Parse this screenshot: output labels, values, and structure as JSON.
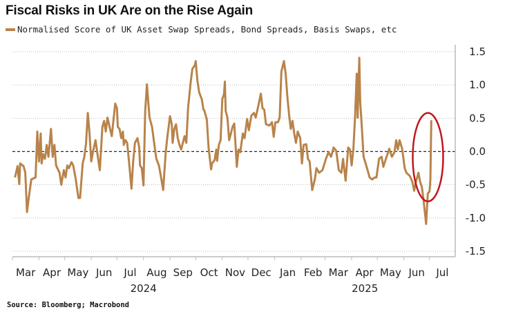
{
  "title": "Fiscal Risks in UK Are on the Rise Again",
  "source": "Source: Bloomberg; Macrobond",
  "colors": {
    "series": "#b8834a",
    "annotation": "#c0161c",
    "grid": "#bbbbbb",
    "zero_line": "#222222"
  },
  "chart_data": {
    "type": "line",
    "title": "Fiscal Risks in UK Are on the Rise Again",
    "xlabel": "",
    "ylabel": "",
    "ylim": [
      -1.5,
      1.5
    ],
    "xlim": [
      "2024-03-01",
      "2025-07-31"
    ],
    "y_axis_side": "right",
    "grid": true,
    "zero_line": "dashed",
    "legend_placement": "top-left",
    "yticks": [
      "1.5",
      "1.0",
      "0.5",
      "0.0",
      "-0.5",
      "-1.0",
      "-1.5"
    ],
    "ytick_values": [
      1.5,
      1.0,
      0.5,
      0.0,
      -0.5,
      -1.0,
      -1.5
    ],
    "months": [
      {
        "label": "Mar",
        "month": "2024-03"
      },
      {
        "label": "Apr",
        "month": "2024-04"
      },
      {
        "label": "May",
        "month": "2024-05"
      },
      {
        "label": "Jun",
        "month": "2024-06"
      },
      {
        "label": "Jul",
        "month": "2024-07"
      },
      {
        "label": "Aug",
        "month": "2024-08"
      },
      {
        "label": "Sep",
        "month": "2024-09"
      },
      {
        "label": "Oct",
        "month": "2024-10"
      },
      {
        "label": "Nov",
        "month": "2024-11"
      },
      {
        "label": "Dec",
        "month": "2024-12"
      },
      {
        "label": "Jan",
        "month": "2025-01"
      },
      {
        "label": "Feb",
        "month": "2025-02"
      },
      {
        "label": "Mar",
        "month": "2025-03"
      },
      {
        "label": "Apr",
        "month": "2025-04"
      },
      {
        "label": "May",
        "month": "2025-05"
      },
      {
        "label": "Jun",
        "month": "2025-06"
      },
      {
        "label": "Jul",
        "month": "2025-07"
      }
    ],
    "years": [
      {
        "label": "2024",
        "from": "2024-03-01",
        "to": "2025-01-01"
      },
      {
        "label": "2025",
        "from": "2025-01-01",
        "to": "2025-07-31"
      }
    ],
    "annotation": {
      "type": "ellipse",
      "around": [
        "2025-06-20",
        "2025-07-05"
      ],
      "yrange": [
        -0.75,
        0.58
      ]
    },
    "series": [
      {
        "name": "Normalised Score of UK Asset Swap Spreads, Bond Spreads, Basis Swaps, etc",
        "points": [
          [
            "2024-03-04",
            -0.39
          ],
          [
            "2024-03-07",
            -0.22
          ],
          [
            "2024-03-09",
            -0.49
          ],
          [
            "2024-03-10",
            -0.18
          ],
          [
            "2024-03-14",
            -0.22
          ],
          [
            "2024-03-16",
            -0.32
          ],
          [
            "2024-03-18",
            -0.91
          ],
          [
            "2024-03-20",
            -0.7
          ],
          [
            "2024-03-23",
            -0.42
          ],
          [
            "2024-03-28",
            -0.39
          ],
          [
            "2024-03-30",
            0.3
          ],
          [
            "2024-04-01",
            -0.15
          ],
          [
            "2024-04-03",
            0.27
          ],
          [
            "2024-04-04",
            -0.18
          ],
          [
            "2024-04-06",
            -0.04
          ],
          [
            "2024-04-08",
            -0.11
          ],
          [
            "2024-04-10",
            0.1
          ],
          [
            "2024-04-12",
            -0.08
          ],
          [
            "2024-04-15",
            0.34
          ],
          [
            "2024-04-17",
            -0.08
          ],
          [
            "2024-04-19",
            0.1
          ],
          [
            "2024-04-21",
            -0.21
          ],
          [
            "2024-04-25",
            -0.32
          ],
          [
            "2024-04-27",
            -0.5
          ],
          [
            "2024-04-30",
            -0.28
          ],
          [
            "2024-05-02",
            -0.39
          ],
          [
            "2024-05-04",
            -0.21
          ],
          [
            "2024-05-06",
            -0.25
          ],
          [
            "2024-05-09",
            -0.16
          ],
          [
            "2024-05-11",
            -0.21
          ],
          [
            "2024-05-14",
            -0.42
          ],
          [
            "2024-05-17",
            -0.7
          ],
          [
            "2024-05-19",
            -0.7
          ],
          [
            "2024-05-22",
            -0.18
          ],
          [
            "2024-05-24",
            -0.08
          ],
          [
            "2024-05-26",
            0.13
          ],
          [
            "2024-05-28",
            0.58
          ],
          [
            "2024-05-30",
            0.27
          ],
          [
            "2024-06-01",
            -0.15
          ],
          [
            "2024-06-03",
            -0.01
          ],
          [
            "2024-06-06",
            0.17
          ],
          [
            "2024-06-08",
            -0.01
          ],
          [
            "2024-06-11",
            -0.28
          ],
          [
            "2024-06-14",
            0.37
          ],
          [
            "2024-06-16",
            0.46
          ],
          [
            "2024-06-18",
            0.3
          ],
          [
            "2024-06-20",
            0.51
          ],
          [
            "2024-06-23",
            0.34
          ],
          [
            "2024-06-25",
            0.23
          ],
          [
            "2024-06-29",
            0.72
          ],
          [
            "2024-07-01",
            0.65
          ],
          [
            "2024-07-02",
            0.37
          ],
          [
            "2024-07-04",
            0.34
          ],
          [
            "2024-07-06",
            0.2
          ],
          [
            "2024-07-08",
            0.3
          ],
          [
            "2024-07-09",
            0.1
          ],
          [
            "2024-07-11",
            0.17
          ],
          [
            "2024-07-13",
            0.13
          ],
          [
            "2024-07-16",
            -0.28
          ],
          [
            "2024-07-18",
            -0.56
          ],
          [
            "2024-07-20",
            -0.15
          ],
          [
            "2024-07-22",
            0.13
          ],
          [
            "2024-07-25",
            0.2
          ],
          [
            "2024-07-27",
            0.06
          ],
          [
            "2024-07-28",
            -0.21
          ],
          [
            "2024-07-30",
            -0.25
          ],
          [
            "2024-08-01",
            -0.51
          ],
          [
            "2024-08-03",
            0.61
          ],
          [
            "2024-08-05",
            1.01
          ],
          [
            "2024-08-07",
            0.68
          ],
          [
            "2024-08-08",
            0.51
          ],
          [
            "2024-08-11",
            0.37
          ],
          [
            "2024-08-13",
            0.17
          ],
          [
            "2024-08-16",
            -0.11
          ],
          [
            "2024-08-19",
            -0.21
          ],
          [
            "2024-08-21",
            -0.35
          ],
          [
            "2024-08-24",
            -0.58
          ],
          [
            "2024-08-27",
            -0.01
          ],
          [
            "2024-08-29",
            0.23
          ],
          [
            "2024-09-01",
            0.53
          ],
          [
            "2024-09-03",
            0.41
          ],
          [
            "2024-09-04",
            0.13
          ],
          [
            "2024-09-06",
            0.34
          ],
          [
            "2024-09-08",
            0.41
          ],
          [
            "2024-09-10",
            0.2
          ],
          [
            "2024-09-12",
            0.1
          ],
          [
            "2024-09-14",
            0.03
          ],
          [
            "2024-09-16",
            0.13
          ],
          [
            "2024-09-18",
            0.23
          ],
          [
            "2024-09-20",
            0.13
          ],
          [
            "2024-09-22",
            0.65
          ],
          [
            "2024-09-25",
            1.03
          ],
          [
            "2024-09-27",
            1.24
          ],
          [
            "2024-09-30",
            1.3
          ],
          [
            "2024-10-01",
            1.36
          ],
          [
            "2024-10-03",
            1.06
          ],
          [
            "2024-10-05",
            0.89
          ],
          [
            "2024-10-08",
            0.79
          ],
          [
            "2024-10-10",
            0.63
          ],
          [
            "2024-10-11",
            0.62
          ],
          [
            "2024-10-14",
            0.48
          ],
          [
            "2024-10-16",
            0.06
          ],
          [
            "2024-10-19",
            -0.27
          ],
          [
            "2024-10-20",
            -0.18
          ],
          [
            "2024-10-23",
            -0.13
          ],
          [
            "2024-10-25",
            0.03
          ],
          [
            "2024-10-26",
            -0.14
          ],
          [
            "2024-10-28",
            0.1
          ],
          [
            "2024-10-30",
            0.17
          ],
          [
            "2024-11-01",
            0.79
          ],
          [
            "2024-11-03",
            0.86
          ],
          [
            "2024-11-04",
            1.05
          ],
          [
            "2024-11-05",
            0.61
          ],
          [
            "2024-11-07",
            0.51
          ],
          [
            "2024-11-09",
            0.17
          ],
          [
            "2024-11-11",
            0.27
          ],
          [
            "2024-11-13",
            0.37
          ],
          [
            "2024-11-15",
            0.42
          ],
          [
            "2024-11-18",
            -0.23
          ],
          [
            "2024-11-20",
            0.03
          ],
          [
            "2024-11-22",
            -0.01
          ],
          [
            "2024-11-25",
            0.27
          ],
          [
            "2024-11-27",
            0.2
          ],
          [
            "2024-11-30",
            0.49
          ],
          [
            "2024-12-02",
            0.32
          ],
          [
            "2024-12-05",
            0.54
          ],
          [
            "2024-12-08",
            0.58
          ],
          [
            "2024-12-10",
            0.51
          ],
          [
            "2024-12-13",
            0.68
          ],
          [
            "2024-12-16",
            0.87
          ],
          [
            "2024-12-18",
            0.65
          ],
          [
            "2024-12-20",
            0.63
          ],
          [
            "2024-12-22",
            0.41
          ],
          [
            "2024-12-26",
            0.39
          ],
          [
            "2024-12-29",
            0.44
          ],
          [
            "2024-12-31",
            0.22
          ],
          [
            "2025-01-02",
            0.44
          ],
          [
            "2025-01-05",
            0.44
          ],
          [
            "2025-01-07",
            0.51
          ],
          [
            "2025-01-09",
            1.2
          ],
          [
            "2025-01-12",
            1.36
          ],
          [
            "2025-01-14",
            1.17
          ],
          [
            "2025-01-16",
            0.82
          ],
          [
            "2025-01-18",
            0.55
          ],
          [
            "2025-01-20",
            0.34
          ],
          [
            "2025-01-22",
            0.46
          ],
          [
            "2025-01-24",
            0.27
          ],
          [
            "2025-01-26",
            0.13
          ],
          [
            "2025-01-28",
            0.3
          ],
          [
            "2025-01-31",
            0.2
          ],
          [
            "2025-02-02",
            -0.18
          ],
          [
            "2025-02-04",
            0.1
          ],
          [
            "2025-02-07",
            0.11
          ],
          [
            "2025-02-09",
            -0.11
          ],
          [
            "2025-02-11",
            -0.15
          ],
          [
            "2025-02-14",
            -0.58
          ],
          [
            "2025-02-17",
            -0.42
          ],
          [
            "2025-02-19",
            -0.25
          ],
          [
            "2025-02-22",
            -0.32
          ],
          [
            "2025-02-26",
            -0.28
          ],
          [
            "2025-03-02",
            -0.11
          ],
          [
            "2025-03-05",
            -0.01
          ],
          [
            "2025-03-08",
            -0.08
          ],
          [
            "2025-03-11",
            0.06
          ],
          [
            "2025-03-14",
            0.01
          ],
          [
            "2025-03-17",
            -0.28
          ],
          [
            "2025-03-20",
            -0.32
          ],
          [
            "2025-03-22",
            -0.11
          ],
          [
            "2025-03-25",
            -0.44
          ],
          [
            "2025-03-28",
            0.06
          ],
          [
            "2025-03-30",
            0.03
          ],
          [
            "2025-04-01",
            -0.21
          ],
          [
            "2025-04-03",
            0.03
          ],
          [
            "2025-04-05",
            0.51
          ],
          [
            "2025-04-07",
            1.17
          ],
          [
            "2025-04-08",
            0.51
          ],
          [
            "2025-04-10",
            1.41
          ],
          [
            "2025-04-11",
            0.75
          ],
          [
            "2025-04-13",
            0.34
          ],
          [
            "2025-04-15",
            -0.08
          ],
          [
            "2025-04-19",
            -0.25
          ],
          [
            "2025-04-22",
            -0.39
          ],
          [
            "2025-04-25",
            -0.42
          ],
          [
            "2025-04-28",
            -0.39
          ],
          [
            "2025-04-30",
            -0.39
          ],
          [
            "2025-05-03",
            -0.11
          ],
          [
            "2025-05-06",
            -0.08
          ],
          [
            "2025-05-08",
            -0.23
          ],
          [
            "2025-05-11",
            -0.11
          ],
          [
            "2025-05-15",
            0.04
          ],
          [
            "2025-05-18",
            -0.08
          ],
          [
            "2025-05-21",
            -0.01
          ],
          [
            "2025-05-23",
            0.17
          ],
          [
            "2025-05-25",
            0.03
          ],
          [
            "2025-05-27",
            0.17
          ],
          [
            "2025-05-30",
            0.04
          ],
          [
            "2025-06-02",
            -0.25
          ],
          [
            "2025-06-04",
            -0.32
          ],
          [
            "2025-06-08",
            -0.37
          ],
          [
            "2025-06-11",
            -0.46
          ],
          [
            "2025-06-13",
            -0.59
          ],
          [
            "2025-06-15",
            -0.46
          ],
          [
            "2025-06-18",
            -0.32
          ],
          [
            "2025-06-20",
            -0.46
          ],
          [
            "2025-06-22",
            -0.53
          ],
          [
            "2025-06-24",
            -0.73
          ],
          [
            "2025-06-26",
            -0.97
          ],
          [
            "2025-06-27",
            -1.09
          ],
          [
            "2025-06-29",
            -0.63
          ],
          [
            "2025-07-01",
            -0.6
          ],
          [
            "2025-07-02",
            -0.42
          ],
          [
            "2025-07-03",
            0.47
          ]
        ]
      }
    ]
  }
}
